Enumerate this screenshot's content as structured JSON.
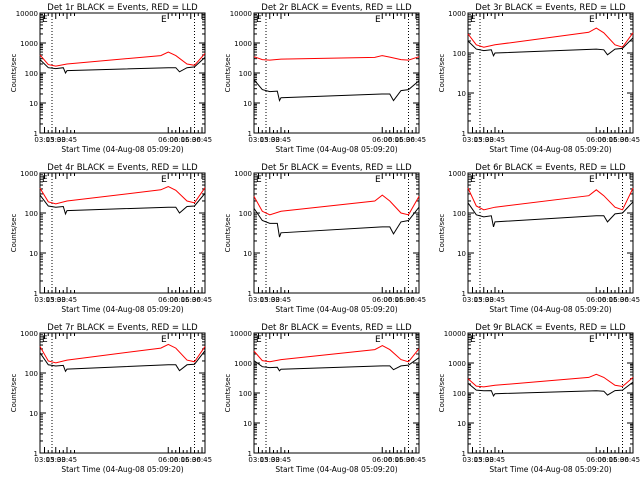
{
  "figure": {
    "background": "#ffffff",
    "axis_color": "#000000",
    "events_color": "#000000",
    "lld_color": "#ff0000",
    "marker_left": "E",
    "marker_right": "E"
  },
  "chart_data": [
    {
      "type": "line",
      "title": "Det 1r BLACK = Events, RED = LLD",
      "xlabel": "Start Time (04-Aug-08 05:09:20)",
      "ylabel": "Counts/sec",
      "yscale": "log",
      "ylim": [
        1,
        10000
      ],
      "xlim": [
        "03:09",
        "06:49"
      ],
      "x_ticks": [
        "03:15",
        "03:30",
        "03:45",
        "06:00",
        "06:15",
        "06:30",
        "06:45"
      ],
      "y_ticks": [
        "1",
        "10",
        "100",
        "1000",
        "10000"
      ],
      "vlines": [
        "03:25",
        "06:35"
      ],
      "series": [
        {
          "color": "#ff0000",
          "x": [
            "03:09",
            "03:20",
            "03:30",
            "03:45",
            "05:50",
            "06:00",
            "06:10",
            "06:25",
            "06:35",
            "06:49"
          ],
          "y": [
            400,
            190,
            170,
            200,
            380,
            500,
            380,
            200,
            180,
            450
          ]
        },
        {
          "color": "#000000",
          "x": [
            "03:09",
            "03:20",
            "03:30",
            "03:40",
            "03:43",
            "03:45",
            "06:00",
            "06:10",
            "06:15",
            "06:25",
            "06:35",
            "06:49"
          ],
          "y": [
            280,
            150,
            140,
            150,
            100,
            120,
            150,
            150,
            110,
            150,
            160,
            330
          ]
        }
      ]
    },
    {
      "type": "line",
      "title": "Det 2r BLACK = Events, RED = LLD",
      "xlabel": "Start Time (04-Aug-08 05:09:20)",
      "ylabel": "Counts/sec",
      "yscale": "log",
      "ylim": [
        1,
        10000
      ],
      "xlim": [
        "03:09",
        "06:49"
      ],
      "x_ticks": [
        "03:15",
        "03:30",
        "03:45",
        "06:00",
        "06:15",
        "06:30",
        "06:45"
      ],
      "y_ticks": [
        "1",
        "10",
        "100",
        "1000",
        "10000"
      ],
      "vlines": [
        "03:25",
        "06:35"
      ],
      "series": [
        {
          "color": "#ff0000",
          "x": [
            "03:09",
            "03:20",
            "03:30",
            "03:45",
            "05:50",
            "06:00",
            "06:10",
            "06:25",
            "06:35",
            "06:49"
          ],
          "y": [
            350,
            280,
            270,
            290,
            330,
            380,
            340,
            280,
            270,
            350
          ]
        },
        {
          "color": "#000000",
          "x": [
            "03:09",
            "03:20",
            "03:30",
            "03:40",
            "03:43",
            "03:45",
            "06:00",
            "06:10",
            "06:15",
            "06:25",
            "06:35",
            "06:49"
          ],
          "y": [
            60,
            28,
            24,
            25,
            12,
            15,
            20,
            20,
            12,
            26,
            28,
            55
          ]
        }
      ]
    },
    {
      "type": "line",
      "title": "Det 3r BLACK = Events, RED = LLD",
      "xlabel": "Start Time (04-Aug-08 05:09:20)",
      "ylabel": "Counts/sec",
      "yscale": "log",
      "ylim": [
        1,
        1000
      ],
      "xlim": [
        "03:09",
        "06:49"
      ],
      "x_ticks": [
        "03:15",
        "03:30",
        "03:45",
        "06:00",
        "06:15",
        "06:30",
        "06:45"
      ],
      "y_ticks": [
        "1",
        "10",
        "100",
        "1000"
      ],
      "vlines": [
        "03:25",
        "06:35"
      ],
      "series": [
        {
          "color": "#ff0000",
          "x": [
            "03:09",
            "03:20",
            "03:30",
            "03:45",
            "05:50",
            "06:00",
            "06:10",
            "06:25",
            "06:35",
            "06:49"
          ],
          "y": [
            300,
            160,
            140,
            160,
            330,
            420,
            320,
            160,
            140,
            320
          ]
        },
        {
          "color": "#000000",
          "x": [
            "03:09",
            "03:20",
            "03:30",
            "03:40",
            "03:43",
            "03:45",
            "06:00",
            "06:10",
            "06:15",
            "06:25",
            "06:35",
            "06:49"
          ],
          "y": [
            200,
            125,
            115,
            120,
            85,
            100,
            125,
            120,
            90,
            125,
            130,
            240
          ]
        }
      ]
    },
    {
      "type": "line",
      "title": "Det 4r BLACK = Events, RED = LLD",
      "xlabel": "Start Time (04-Aug-08 05:09:20)",
      "ylabel": "Counts/sec",
      "yscale": "log",
      "ylim": [
        1,
        1000
      ],
      "xlim": [
        "03:09",
        "06:49"
      ],
      "x_ticks": [
        "03:15",
        "03:30",
        "03:45",
        "06:00",
        "06:15",
        "06:30",
        "06:45"
      ],
      "y_ticks": [
        "1",
        "10",
        "100",
        "1000"
      ],
      "vlines": [
        "03:25",
        "06:35"
      ],
      "series": [
        {
          "color": "#ff0000",
          "x": [
            "03:09",
            "03:20",
            "03:30",
            "03:45",
            "05:50",
            "06:00",
            "06:10",
            "06:25",
            "06:35",
            "06:49"
          ],
          "y": [
            420,
            190,
            170,
            200,
            380,
            460,
            370,
            200,
            180,
            430
          ]
        },
        {
          "color": "#000000",
          "x": [
            "03:09",
            "03:20",
            "03:30",
            "03:40",
            "03:43",
            "03:45",
            "06:00",
            "06:10",
            "06:15",
            "06:25",
            "06:35",
            "06:49"
          ],
          "y": [
            280,
            150,
            140,
            145,
            95,
            115,
            140,
            140,
            100,
            145,
            150,
            310
          ]
        }
      ]
    },
    {
      "type": "line",
      "title": "Det 5r BLACK = Events, RED = LLD",
      "xlabel": "Start Time (04-Aug-08 05:09:20)",
      "ylabel": "Counts/sec",
      "yscale": "log",
      "ylim": [
        1,
        1000
      ],
      "xlim": [
        "03:09",
        "06:49"
      ],
      "x_ticks": [
        "03:15",
        "03:30",
        "03:45",
        "06:00",
        "06:15",
        "06:30",
        "06:45"
      ],
      "y_ticks": [
        "1",
        "10",
        "100",
        "1000"
      ],
      "vlines": [
        "03:25",
        "06:35"
      ],
      "series": [
        {
          "color": "#ff0000",
          "x": [
            "03:09",
            "03:20",
            "03:30",
            "03:45",
            "05:50",
            "06:00",
            "06:10",
            "06:25",
            "06:35",
            "06:49"
          ],
          "y": [
            260,
            110,
            90,
            110,
            200,
            280,
            200,
            100,
            90,
            260
          ]
        },
        {
          "color": "#000000",
          "x": [
            "03:09",
            "03:20",
            "03:30",
            "03:40",
            "03:43",
            "03:45",
            "06:00",
            "06:10",
            "06:15",
            "06:25",
            "06:35",
            "06:49"
          ],
          "y": [
            130,
            65,
            55,
            55,
            25,
            32,
            45,
            45,
            30,
            60,
            65,
            140
          ]
        }
      ]
    },
    {
      "type": "line",
      "title": "Det 6r BLACK = Events, RED = LLD",
      "xlabel": "Start Time (04-Aug-08 05:09:20)",
      "ylabel": "Counts/sec",
      "yscale": "log",
      "ylim": [
        1,
        1000
      ],
      "xlim": [
        "03:09",
        "06:49"
      ],
      "x_ticks": [
        "03:15",
        "03:30",
        "03:45",
        "06:00",
        "06:15",
        "06:30",
        "06:45"
      ],
      "y_ticks": [
        "1",
        "10",
        "100",
        "1000"
      ],
      "vlines": [
        "03:25",
        "06:35"
      ],
      "series": [
        {
          "color": "#ff0000",
          "x": [
            "03:09",
            "03:20",
            "03:30",
            "03:45",
            "05:50",
            "06:00",
            "06:10",
            "06:25",
            "06:35",
            "06:49"
          ],
          "y": [
            420,
            150,
            120,
            140,
            270,
            380,
            270,
            140,
            120,
            420
          ]
        },
        {
          "color": "#000000",
          "x": [
            "03:09",
            "03:20",
            "03:30",
            "03:40",
            "03:43",
            "03:45",
            "06:00",
            "06:10",
            "06:15",
            "06:25",
            "06:35",
            "06:49"
          ],
          "y": [
            180,
            90,
            80,
            85,
            45,
            60,
            85,
            85,
            60,
            95,
            100,
            190
          ]
        }
      ]
    },
    {
      "type": "line",
      "title": "Det 7r BLACK = Events, RED = LLD",
      "xlabel": "Start Time (04-Aug-08 05:09:20)",
      "ylabel": "Counts/sec",
      "yscale": "log",
      "ylim": [
        1,
        1000
      ],
      "xlim": [
        "03:09",
        "06:49"
      ],
      "x_ticks": [
        "03:15",
        "03:30",
        "03:45",
        "06:00",
        "06:15",
        "06:30",
        "06:45"
      ],
      "y_ticks": [
        "1",
        "10",
        "100",
        "1000"
      ],
      "vlines": [
        "03:25",
        "06:35"
      ],
      "series": [
        {
          "color": "#ff0000",
          "x": [
            "03:09",
            "03:20",
            "03:30",
            "03:45",
            "05:50",
            "06:00",
            "06:10",
            "06:25",
            "06:35",
            "06:49"
          ],
          "y": [
            460,
            200,
            180,
            210,
            420,
            520,
            420,
            210,
            190,
            460
          ]
        },
        {
          "color": "#000000",
          "x": [
            "03:09",
            "03:20",
            "03:30",
            "03:40",
            "03:43",
            "03:45",
            "06:00",
            "06:10",
            "06:15",
            "06:25",
            "06:35",
            "06:49"
          ],
          "y": [
            320,
            160,
            150,
            155,
            110,
            125,
            160,
            160,
            115,
            160,
            165,
            360
          ]
        }
      ]
    },
    {
      "type": "line",
      "title": "Det 8r BLACK = Events, RED = LLD",
      "xlabel": "Start Time (04-Aug-08 05:09:20)",
      "ylabel": "Counts/sec",
      "yscale": "log",
      "ylim": [
        1,
        10000
      ],
      "xlim": [
        "03:09",
        "06:49"
      ],
      "x_ticks": [
        "03:15",
        "03:30",
        "03:45",
        "06:00",
        "06:15",
        "06:30",
        "06:45"
      ],
      "y_ticks": [
        "1",
        "10",
        "100",
        "1000",
        "10000"
      ],
      "vlines": [
        "03:25",
        "06:35"
      ],
      "series": [
        {
          "color": "#ff0000",
          "x": [
            "03:09",
            "03:20",
            "03:30",
            "03:45",
            "05:50",
            "06:00",
            "06:10",
            "06:25",
            "06:35",
            "06:49"
          ],
          "y": [
            2500,
            1200,
            1100,
            1300,
            2800,
            3800,
            2800,
            1300,
            1100,
            3000
          ]
        },
        {
          "color": "#000000",
          "x": [
            "03:09",
            "03:20",
            "03:30",
            "03:40",
            "03:43",
            "03:45",
            "06:00",
            "06:10",
            "06:15",
            "06:25",
            "06:35",
            "06:49"
          ],
          "y": [
            1200,
            750,
            700,
            720,
            550,
            620,
            800,
            800,
            600,
            800,
            850,
            1500
          ]
        }
      ]
    },
    {
      "type": "line",
      "title": "Det 9r BLACK = Events, RED = LLD",
      "xlabel": "Start Time (04-Aug-08 05:09:20)",
      "ylabel": "Counts/sec",
      "yscale": "log",
      "ylim": [
        1,
        10000
      ],
      "xlim": [
        "03:09",
        "06:49"
      ],
      "x_ticks": [
        "03:15",
        "03:30",
        "03:45",
        "06:00",
        "06:15",
        "06:30",
        "06:45"
      ],
      "y_ticks": [
        "1",
        "10",
        "100",
        "1000",
        "10000"
      ],
      "vlines": [
        "03:25",
        "06:35"
      ],
      "series": [
        {
          "color": "#ff0000",
          "x": [
            "03:09",
            "03:20",
            "03:30",
            "03:45",
            "05:50",
            "06:00",
            "06:10",
            "06:25",
            "06:35",
            "06:49"
          ],
          "y": [
            300,
            170,
            160,
            180,
            330,
            420,
            330,
            180,
            165,
            330
          ]
        },
        {
          "color": "#000000",
          "x": [
            "03:09",
            "03:20",
            "03:30",
            "03:40",
            "03:43",
            "03:45",
            "06:00",
            "06:10",
            "06:15",
            "06:25",
            "06:35",
            "06:49"
          ],
          "y": [
            210,
            125,
            118,
            120,
            80,
            95,
            118,
            115,
            85,
            120,
            125,
            230
          ]
        }
      ]
    }
  ]
}
